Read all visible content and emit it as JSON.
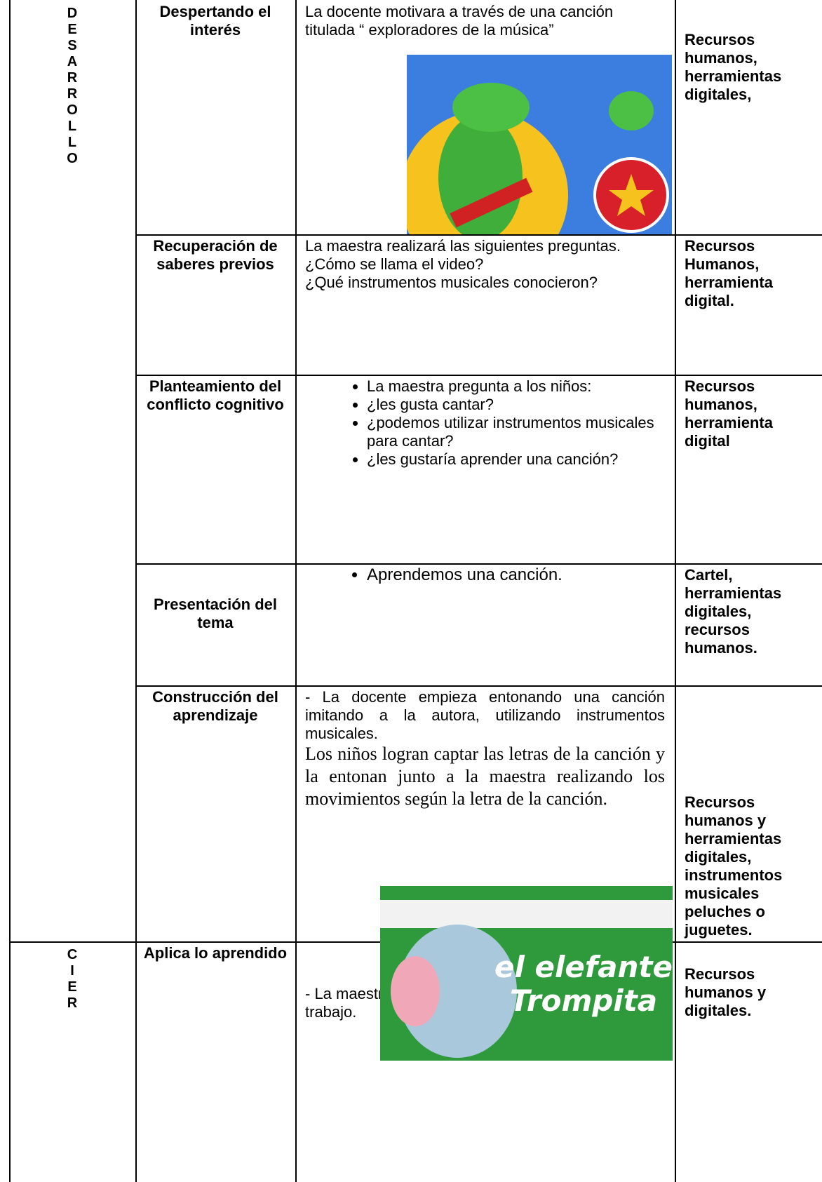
{
  "phases": [
    {
      "letters": [
        "D",
        "E",
        "S",
        "A",
        "R",
        "R",
        "O",
        "L",
        "L",
        "O"
      ]
    },
    {
      "letters": [
        "C",
        "I",
        "E",
        "R"
      ]
    }
  ],
  "rows": [
    {
      "stage": "Despertando el interés",
      "paragraphs": [
        "La docente motivara a través de una canción titulada “ exploradores de la música”"
      ],
      "resources": "Recursos humanos, herramientas digitales,"
    },
    {
      "stage": "Recuperación de saberes previos",
      "paragraphs": [
        "La maestra realizará las siguientes preguntas.",
        "¿Cómo se llama el video?",
        "¿Qué instrumentos musicales conocieron?"
      ],
      "resources": "Recursos Humanos, herramienta digital."
    },
    {
      "stage": "Planteamiento del conflicto cognitivo",
      "bullets": [
        "La maestra pregunta a los niños:",
        "¿les gusta cantar?",
        "¿podemos utilizar instrumentos musicales para cantar?",
        "¿les gustaría aprender una canción?"
      ],
      "resources": "Recursos humanos, herramienta digital"
    },
    {
      "stage": "Presentación del tema",
      "bullets": [
        "Aprendemos una canción."
      ],
      "resources": "Cartel, herramientas digitales, recursos humanos."
    },
    {
      "stage": "Construcción del aprendizaje",
      "paragraphs": [
        "- La docente empieza entonando una canción imitando a la autora, utilizando instrumentos musicales.",
        "Los niños logran captar las letras de la canción y la entonan junto a la maestra realizando los movimientos según la letra de la canción."
      ],
      "image_text": [
        "el elefante",
        "Trompita"
      ],
      "resources": "Recursos humanos y herramientas digitales, instrumentos musicales peluches o juguetes."
    },
    {
      "stage": "Aplica lo aprendido",
      "paragraphs": [
        "- La maestra y los infantes trabajan la ficha de trabajo."
      ],
      "resources": "Recursos humanos y digitales."
    }
  ]
}
